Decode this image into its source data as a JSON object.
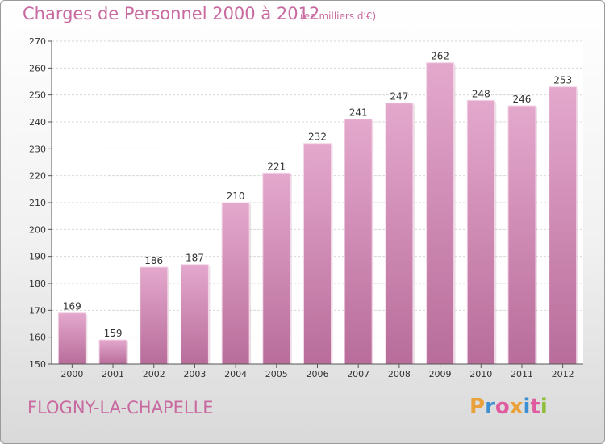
{
  "chart_data": {
    "type": "bar",
    "title": "Charges de Personnel 2000 à 2012",
    "subtitle": "(en milliers d'€)",
    "categories": [
      "2000",
      "2001",
      "2002",
      "2003",
      "2004",
      "2005",
      "2006",
      "2007",
      "2008",
      "2009",
      "2010",
      "2011",
      "2012"
    ],
    "values": [
      169,
      159,
      186,
      187,
      210,
      221,
      232,
      241,
      247,
      262,
      248,
      246,
      253
    ],
    "ylim": [
      150,
      270
    ],
    "yticks": [
      150,
      160,
      170,
      180,
      190,
      200,
      210,
      220,
      230,
      240,
      250,
      260,
      270
    ],
    "grid": true,
    "bar_color": "#d48fb8",
    "xlabel": "",
    "ylabel": ""
  },
  "footer": {
    "place": "FLOGNY-LA-CHAPELLE",
    "logo_letters": [
      "P",
      "r",
      "o",
      "x",
      "i",
      "t",
      "i"
    ],
    "logo_colors": [
      "#e9a13b",
      "#3c8fd1",
      "#e05aa0",
      "#e9a13b",
      "#3c8fd1",
      "#e05aa0",
      "#8fbf3a"
    ]
  },
  "colors": {
    "accent": "#c86aa0",
    "grid": "#d8d8d8"
  }
}
